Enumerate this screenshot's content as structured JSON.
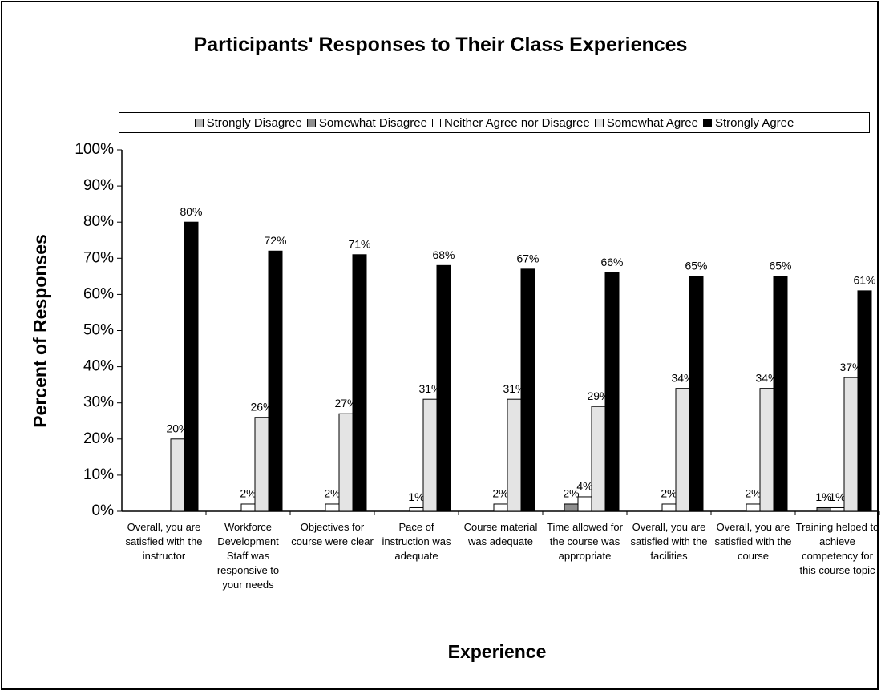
{
  "chart_data": {
    "type": "bar",
    "title": "Participants' Responses to Their Class Experiences",
    "x_label": "Experience",
    "y_label": "Percent of Responses",
    "categories": [
      "Overall, you are satisfied with the instructor",
      "Workforce Development Staff was responsive to your needs",
      "Objectives for course were clear",
      "Pace of instruction was adequate",
      "Course material was adequate",
      "Time allowed for the course was appropriate",
      "Overall, you are satisfied with the facilities",
      "Overall, you are satisfied with the course",
      "Training helped to achieve competency for this course topic"
    ],
    "series": [
      {
        "name": "Strongly Disagree",
        "color": "#b8b8b8",
        "values": [
          0,
          0,
          0,
          0,
          0,
          0,
          0,
          0,
          0
        ],
        "value_labels": [
          null,
          null,
          null,
          null,
          null,
          null,
          null,
          null,
          null
        ]
      },
      {
        "name": "Somewhat Disagree",
        "color": "#8f8f8f",
        "values": [
          0,
          0,
          0,
          0,
          0,
          2,
          0,
          0,
          1
        ],
        "value_labels": [
          null,
          null,
          null,
          null,
          null,
          "2%",
          null,
          null,
          "1%"
        ]
      },
      {
        "name": "Neither Agree nor Disagree",
        "color": "#ffffff",
        "values": [
          0,
          2,
          2,
          1,
          2,
          4,
          2,
          2,
          1
        ],
        "value_labels": [
          null,
          "2%",
          "2%",
          "1%",
          "2%",
          "4%",
          "2%",
          "2%",
          "1%"
        ]
      },
      {
        "name": "Somewhat Agree",
        "color": "#e4e4e4",
        "values": [
          20,
          26,
          27,
          31,
          31,
          29,
          34,
          34,
          37
        ],
        "value_labels": [
          "20%",
          "26%",
          "27%",
          "31%",
          "31%",
          "29%",
          "34%",
          "34%",
          "37%"
        ]
      },
      {
        "name": "Strongly Agree",
        "color": "#000000",
        "values": [
          80,
          72,
          71,
          68,
          67,
          66,
          65,
          65,
          61
        ],
        "value_labels": [
          "80%",
          "72%",
          "71%",
          "68%",
          "67%",
          "66%",
          "65%",
          "65%",
          "61%"
        ]
      }
    ],
    "ylim": [
      0,
      100
    ],
    "yticks": [
      {
        "value": 0,
        "label": "0%"
      },
      {
        "value": 10,
        "label": "10%"
      },
      {
        "value": 20,
        "label": "20%"
      },
      {
        "value": 30,
        "label": "30%"
      },
      {
        "value": 40,
        "label": "40%"
      },
      {
        "value": 50,
        "label": "50%"
      },
      {
        "value": 60,
        "label": "60%"
      },
      {
        "value": 70,
        "label": "70%"
      },
      {
        "value": 80,
        "label": "80%"
      },
      {
        "value": 90,
        "label": "90%"
      },
      {
        "value": 100,
        "label": "100%"
      }
    ],
    "grid": false,
    "legend": "top"
  }
}
